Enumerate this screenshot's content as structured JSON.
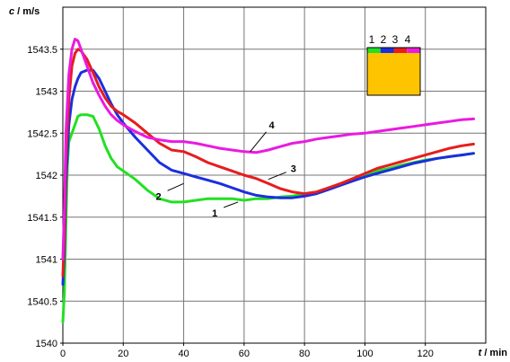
{
  "chart_data": {
    "type": "line",
    "ylabel_var": "c",
    "ylabel_unit": " / m/s",
    "xlabel_var": "t",
    "xlabel_unit": " / min",
    "xlim": [
      0,
      140
    ],
    "ylim": [
      1540,
      1544
    ],
    "xticks": [
      "0",
      "20",
      "40",
      "60",
      "80",
      "100",
      "120"
    ],
    "xtick_values": [
      0,
      20,
      40,
      60,
      80,
      100,
      120
    ],
    "yticks": [
      "1540",
      "1540.5",
      "1541",
      "1541.5",
      "1542",
      "1542.5",
      "1543",
      "1543.5"
    ],
    "ytick_values": [
      1540,
      1540.5,
      1541,
      1541.5,
      1542,
      1542.5,
      1543,
      1543.5
    ],
    "grid": true,
    "series": [
      {
        "name": "1",
        "color": "#22e022",
        "points": [
          [
            0,
            1540.25
          ],
          [
            0.5,
            1540.6
          ],
          [
            1,
            1541.4
          ],
          [
            1.5,
            1542.1
          ],
          [
            2,
            1542.4
          ],
          [
            3,
            1542.5
          ],
          [
            4,
            1542.6
          ],
          [
            5,
            1542.7
          ],
          [
            6,
            1542.72
          ],
          [
            8,
            1542.72
          ],
          [
            10,
            1542.7
          ],
          [
            12,
            1542.55
          ],
          [
            14,
            1542.35
          ],
          [
            16,
            1542.2
          ],
          [
            18,
            1542.1
          ],
          [
            20,
            1542.05
          ],
          [
            24,
            1541.95
          ],
          [
            28,
            1541.82
          ],
          [
            32,
            1541.72
          ],
          [
            36,
            1541.68
          ],
          [
            40,
            1541.68
          ],
          [
            44,
            1541.7
          ],
          [
            48,
            1541.72
          ],
          [
            52,
            1541.72
          ],
          [
            56,
            1541.72
          ],
          [
            60,
            1541.7
          ],
          [
            64,
            1541.72
          ],
          [
            68,
            1541.72
          ],
          [
            72,
            1541.74
          ],
          [
            76,
            1541.75
          ],
          [
            80,
            1541.78
          ],
          [
            84,
            1541.8
          ],
          [
            88,
            1541.85
          ],
          [
            92,
            1541.9
          ],
          [
            96,
            1541.95
          ],
          [
            100,
            1542.0
          ],
          [
            104,
            1542.05
          ],
          [
            108,
            1542.08
          ],
          [
            112,
            1542.12
          ],
          [
            116,
            1542.15
          ],
          [
            120,
            1542.18
          ],
          [
            124,
            1542.2
          ],
          [
            128,
            1542.22
          ],
          [
            132,
            1542.24
          ],
          [
            136,
            1542.26
          ]
        ]
      },
      {
        "name": "2",
        "color": "#1a2ee0",
        "points": [
          [
            0,
            1540.7
          ],
          [
            0.5,
            1541.1
          ],
          [
            1,
            1541.9
          ],
          [
            2,
            1542.6
          ],
          [
            3,
            1542.9
          ],
          [
            4,
            1543.05
          ],
          [
            5,
            1543.15
          ],
          [
            6,
            1543.22
          ],
          [
            8,
            1543.25
          ],
          [
            10,
            1543.25
          ],
          [
            12,
            1543.15
          ],
          [
            14,
            1543.0
          ],
          [
            16,
            1542.85
          ],
          [
            18,
            1542.72
          ],
          [
            20,
            1542.62
          ],
          [
            24,
            1542.45
          ],
          [
            28,
            1542.3
          ],
          [
            32,
            1542.15
          ],
          [
            36,
            1542.06
          ],
          [
            40,
            1542.02
          ],
          [
            44,
            1541.98
          ],
          [
            48,
            1541.94
          ],
          [
            52,
            1541.9
          ],
          [
            56,
            1541.85
          ],
          [
            60,
            1541.8
          ],
          [
            64,
            1541.76
          ],
          [
            68,
            1541.74
          ],
          [
            72,
            1541.73
          ],
          [
            76,
            1541.73
          ],
          [
            80,
            1541.75
          ],
          [
            84,
            1541.78
          ],
          [
            88,
            1541.83
          ],
          [
            92,
            1541.88
          ],
          [
            96,
            1541.93
          ],
          [
            100,
            1541.98
          ],
          [
            104,
            1542.02
          ],
          [
            108,
            1542.06
          ],
          [
            112,
            1542.1
          ],
          [
            116,
            1542.14
          ],
          [
            120,
            1542.17
          ],
          [
            124,
            1542.2
          ],
          [
            128,
            1542.22
          ],
          [
            132,
            1542.24
          ],
          [
            136,
            1542.26
          ]
        ]
      },
      {
        "name": "3",
        "color": "#e81c1c",
        "points": [
          [
            0,
            1540.8
          ],
          [
            0.5,
            1541.3
          ],
          [
            1,
            1542.2
          ],
          [
            2,
            1542.9
          ],
          [
            3,
            1543.3
          ],
          [
            4,
            1543.45
          ],
          [
            5,
            1543.5
          ],
          [
            6,
            1543.48
          ],
          [
            8,
            1543.38
          ],
          [
            10,
            1543.22
          ],
          [
            12,
            1543.05
          ],
          [
            14,
            1542.92
          ],
          [
            16,
            1542.82
          ],
          [
            18,
            1542.76
          ],
          [
            20,
            1542.72
          ],
          [
            24,
            1542.62
          ],
          [
            28,
            1542.5
          ],
          [
            32,
            1542.38
          ],
          [
            36,
            1542.3
          ],
          [
            40,
            1542.28
          ],
          [
            44,
            1542.22
          ],
          [
            48,
            1542.15
          ],
          [
            52,
            1542.1
          ],
          [
            56,
            1542.05
          ],
          [
            60,
            1542.0
          ],
          [
            64,
            1541.96
          ],
          [
            68,
            1541.9
          ],
          [
            72,
            1541.84
          ],
          [
            76,
            1541.8
          ],
          [
            80,
            1541.78
          ],
          [
            84,
            1541.8
          ],
          [
            88,
            1541.85
          ],
          [
            92,
            1541.9
          ],
          [
            96,
            1541.96
          ],
          [
            100,
            1542.02
          ],
          [
            104,
            1542.08
          ],
          [
            108,
            1542.12
          ],
          [
            112,
            1542.16
          ],
          [
            116,
            1542.2
          ],
          [
            120,
            1542.24
          ],
          [
            124,
            1542.28
          ],
          [
            128,
            1542.32
          ],
          [
            132,
            1542.35
          ],
          [
            136,
            1542.37
          ]
        ]
      },
      {
        "name": "4",
        "color": "#ea1ae0",
        "points": [
          [
            0,
            1541.0
          ],
          [
            0.5,
            1541.6
          ],
          [
            1,
            1542.5
          ],
          [
            2,
            1543.2
          ],
          [
            3,
            1543.5
          ],
          [
            4,
            1543.62
          ],
          [
            5,
            1543.6
          ],
          [
            6,
            1543.5
          ],
          [
            8,
            1543.3
          ],
          [
            10,
            1543.1
          ],
          [
            12,
            1542.95
          ],
          [
            14,
            1542.82
          ],
          [
            16,
            1542.72
          ],
          [
            18,
            1542.65
          ],
          [
            20,
            1542.6
          ],
          [
            24,
            1542.52
          ],
          [
            28,
            1542.45
          ],
          [
            32,
            1542.42
          ],
          [
            36,
            1542.4
          ],
          [
            40,
            1542.4
          ],
          [
            44,
            1542.38
          ],
          [
            48,
            1542.35
          ],
          [
            52,
            1542.32
          ],
          [
            56,
            1542.3
          ],
          [
            60,
            1542.28
          ],
          [
            64,
            1542.27
          ],
          [
            68,
            1542.3
          ],
          [
            72,
            1542.34
          ],
          [
            76,
            1542.38
          ],
          [
            80,
            1542.4
          ],
          [
            84,
            1542.43
          ],
          [
            88,
            1542.45
          ],
          [
            92,
            1542.47
          ],
          [
            96,
            1542.49
          ],
          [
            100,
            1542.5
          ],
          [
            104,
            1542.52
          ],
          [
            108,
            1542.54
          ],
          [
            112,
            1542.56
          ],
          [
            116,
            1542.58
          ],
          [
            120,
            1542.6
          ],
          [
            124,
            1542.62
          ],
          [
            128,
            1542.64
          ],
          [
            132,
            1542.66
          ],
          [
            136,
            1542.67
          ]
        ]
      }
    ],
    "annotations": [
      {
        "text": "1",
        "x": 58,
        "y": 1541.68
      },
      {
        "text": "2",
        "x": 40,
        "y": 1541.9
      },
      {
        "text": "3",
        "x": 68,
        "y": 1541.95
      },
      {
        "text": "4",
        "x": 62,
        "y": 1542.28
      }
    ],
    "legend": {
      "placement": "top-right",
      "labels": [
        "1",
        "2",
        "3",
        "4"
      ],
      "fill_color": "#ffc400"
    }
  }
}
